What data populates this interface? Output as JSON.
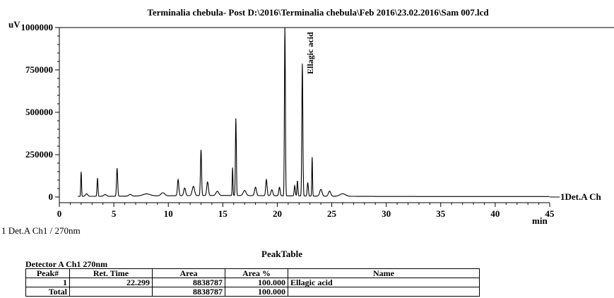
{
  "chart_data": {
    "type": "line",
    "title": "Terminalia chebula- Post D:\\2016\\Terminalia chebula\\Feb 2016\\23.02.2016\\Sam 007.lcd",
    "ylabel": "uV",
    "xlabel": "min",
    "xlim": [
      0,
      45
    ],
    "ylim": [
      -50000,
      1000000
    ],
    "x_ticks": [
      0,
      5,
      10,
      15,
      20,
      25,
      30,
      35,
      40,
      45
    ],
    "x_tick_labels": [
      "0",
      "5",
      "10",
      "15",
      "20",
      "25",
      "30",
      "35",
      "40",
      "45"
    ],
    "y_ticks": [
      0,
      250000,
      500000,
      750000,
      1000000
    ],
    "y_tick_labels": [
      "0",
      "250000",
      "500000",
      "750000",
      "1000000"
    ],
    "series": [
      {
        "name": "1Det.A Ch",
        "color": "#000000",
        "baseline": 3000,
        "peaks": [
          {
            "x": 2.0,
            "y": 145000,
            "w": 0.08
          },
          {
            "x": 2.5,
            "y": 15000,
            "w": 0.25
          },
          {
            "x": 3.5,
            "y": 108000,
            "w": 0.1
          },
          {
            "x": 4.2,
            "y": 10000,
            "w": 0.3
          },
          {
            "x": 5.3,
            "y": 165000,
            "w": 0.12
          },
          {
            "x": 6.5,
            "y": 10000,
            "w": 0.3
          },
          {
            "x": 8.0,
            "y": 12000,
            "w": 0.8
          },
          {
            "x": 9.5,
            "y": 18000,
            "w": 0.4
          },
          {
            "x": 10.9,
            "y": 95000,
            "w": 0.15
          },
          {
            "x": 11.5,
            "y": 45000,
            "w": 0.2
          },
          {
            "x": 12.3,
            "y": 55000,
            "w": 0.25
          },
          {
            "x": 13.0,
            "y": 270000,
            "w": 0.12
          },
          {
            "x": 13.6,
            "y": 80000,
            "w": 0.18
          },
          {
            "x": 14.5,
            "y": 25000,
            "w": 0.3
          },
          {
            "x": 15.9,
            "y": 165000,
            "w": 0.08
          },
          {
            "x": 16.2,
            "y": 455000,
            "w": 0.1
          },
          {
            "x": 17.0,
            "y": 30000,
            "w": 0.3
          },
          {
            "x": 18.0,
            "y": 50000,
            "w": 0.2
          },
          {
            "x": 19.0,
            "y": 95000,
            "w": 0.15
          },
          {
            "x": 19.5,
            "y": 35000,
            "w": 0.2
          },
          {
            "x": 20.2,
            "y": 50000,
            "w": 0.15
          },
          {
            "x": 20.7,
            "y": 1000000,
            "w": 0.1
          },
          {
            "x": 21.6,
            "y": 60000,
            "w": 0.12
          },
          {
            "x": 21.85,
            "y": 90000,
            "w": 0.1
          },
          {
            "x": 22.3,
            "y": 780000,
            "w": 0.11
          },
          {
            "x": 22.8,
            "y": 80000,
            "w": 0.12
          },
          {
            "x": 23.2,
            "y": 230000,
            "w": 0.08
          },
          {
            "x": 24.0,
            "y": 40000,
            "w": 0.25
          },
          {
            "x": 24.8,
            "y": 30000,
            "w": 0.25
          },
          {
            "x": 26.0,
            "y": 15000,
            "w": 0.6
          }
        ],
        "annotations": [
          {
            "x": 22.299,
            "label": "Ellagic acid"
          }
        ]
      }
    ],
    "grid": false,
    "legend": "right-of-trace"
  },
  "footer": {
    "channel_label": "1 Det.A Ch1 / 270nm",
    "peak_table_title": "PeakTable",
    "detector_label": "Detector A Ch1 270nm"
  },
  "peak_table": {
    "headers": [
      "Peak#",
      "Ret. Time",
      "Area",
      "Area %",
      "Name"
    ],
    "rows": [
      {
        "peak": "1",
        "ret_time": "22.299",
        "area": "8838787",
        "area_pct": "100.000",
        "name": "Ellagic acid"
      }
    ],
    "total": {
      "label": "Total",
      "area": "8838787",
      "area_pct": "100.000"
    }
  }
}
